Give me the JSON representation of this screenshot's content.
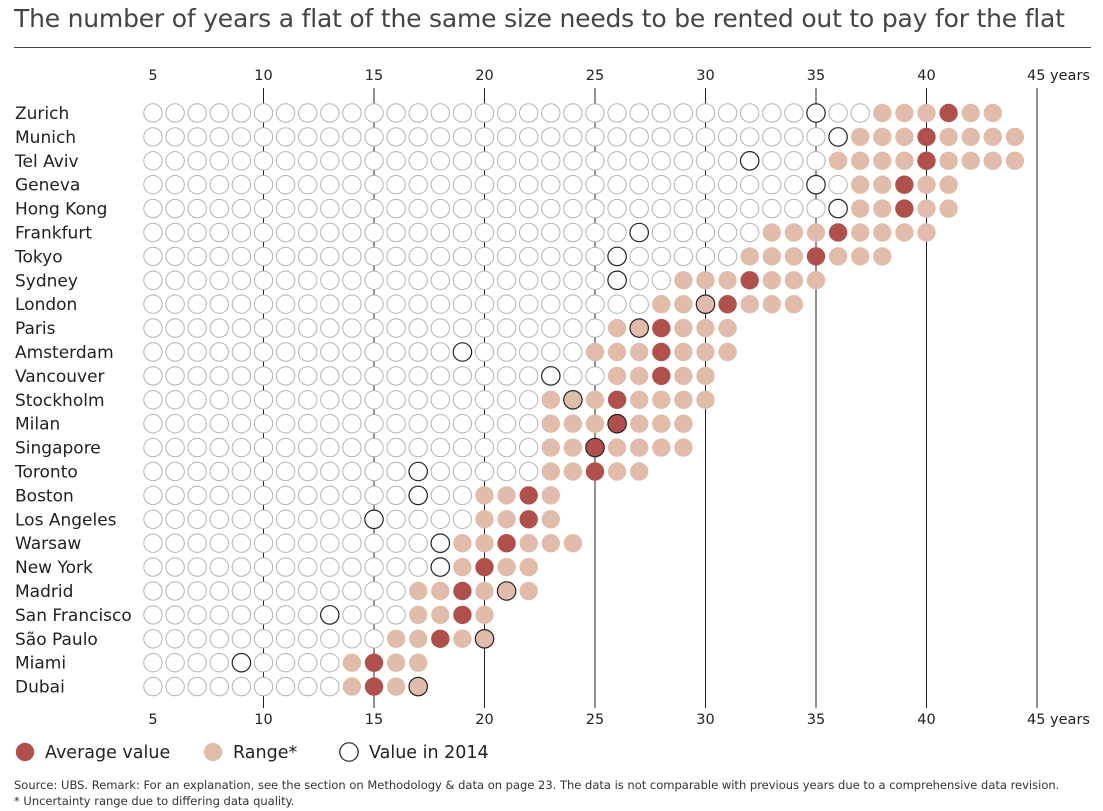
{
  "title": "The number of years a flat of the same size needs to be rented out to pay for the flat",
  "source": "Source: UBS. Remark: For an explanation, see the section on Methodology & data on page 23. The data is not comparable with previous years due to a comprehensive data revision.",
  "footnote": "* Uncertainty range due to differing data quality.",
  "colors": {
    "average": "#b0504d",
    "range": "#e2bcaa",
    "outline": "#b3b3b3",
    "value2014": "#222222"
  },
  "chart_data": {
    "type": "dot-range",
    "xlim": [
      5,
      45
    ],
    "ticks": [
      "5",
      "10",
      "15",
      "20",
      "25",
      "30",
      "35",
      "40",
      "45 years"
    ],
    "tick_values": [
      5,
      10,
      15,
      20,
      25,
      30,
      35,
      40,
      45
    ],
    "legend": [
      "Average value",
      "Range*",
      "Value in 2014"
    ],
    "cities": [
      {
        "name": "Zurich",
        "range": [
          38,
          43
        ],
        "average": 41,
        "value2014": 35
      },
      {
        "name": "Munich",
        "range": [
          37,
          44
        ],
        "average": 40,
        "value2014": 36
      },
      {
        "name": "Tel Aviv",
        "range": [
          36,
          44
        ],
        "average": 40,
        "value2014": 32
      },
      {
        "name": "Geneva",
        "range": [
          37,
          41
        ],
        "average": 39,
        "value2014": 35
      },
      {
        "name": "Hong Kong",
        "range": [
          37,
          41
        ],
        "average": 39,
        "value2014": 36
      },
      {
        "name": "Frankfurt",
        "range": [
          33,
          40
        ],
        "average": 36,
        "value2014": 27
      },
      {
        "name": "Tokyo",
        "range": [
          32,
          38
        ],
        "average": 35,
        "value2014": 26
      },
      {
        "name": "Sydney",
        "range": [
          29,
          35
        ],
        "average": 32,
        "value2014": 26
      },
      {
        "name": "London",
        "range": [
          28,
          34
        ],
        "average": 31,
        "value2014": 30
      },
      {
        "name": "Paris",
        "range": [
          26,
          31
        ],
        "average": 28,
        "value2014": 27
      },
      {
        "name": "Amsterdam",
        "range": [
          25,
          31
        ],
        "average": 28,
        "value2014": 19
      },
      {
        "name": "Vancouver",
        "range": [
          26,
          30
        ],
        "average": 28,
        "value2014": 23
      },
      {
        "name": "Stockholm",
        "range": [
          23,
          30
        ],
        "average": 26,
        "value2014": 24
      },
      {
        "name": "Milan",
        "range": [
          23,
          29
        ],
        "average": 26,
        "value2014": 26
      },
      {
        "name": "Singapore",
        "range": [
          23,
          29
        ],
        "average": 25,
        "value2014": 25
      },
      {
        "name": "Toronto",
        "range": [
          23,
          27
        ],
        "average": 25,
        "value2014": 17
      },
      {
        "name": "Boston",
        "range": [
          20,
          23
        ],
        "average": 22,
        "value2014": 17
      },
      {
        "name": "Los Angeles",
        "range": [
          20,
          23
        ],
        "average": 22,
        "value2014": 15
      },
      {
        "name": "Warsaw",
        "range": [
          19,
          24
        ],
        "average": 21,
        "value2014": 18
      },
      {
        "name": "New York",
        "range": [
          19,
          22
        ],
        "average": 20,
        "value2014": 18
      },
      {
        "name": "Madrid",
        "range": [
          17,
          22
        ],
        "average": 19,
        "value2014": 21
      },
      {
        "name": "San Francisco",
        "range": [
          17,
          20
        ],
        "average": 19,
        "value2014": 13
      },
      {
        "name": "São Paulo",
        "range": [
          16,
          20
        ],
        "average": 18,
        "value2014": 20
      },
      {
        "name": "Miami",
        "range": [
          14,
          17
        ],
        "average": 15,
        "value2014": 9
      },
      {
        "name": "Dubai",
        "range": [
          14,
          17
        ],
        "average": 15,
        "value2014": 17
      }
    ]
  }
}
